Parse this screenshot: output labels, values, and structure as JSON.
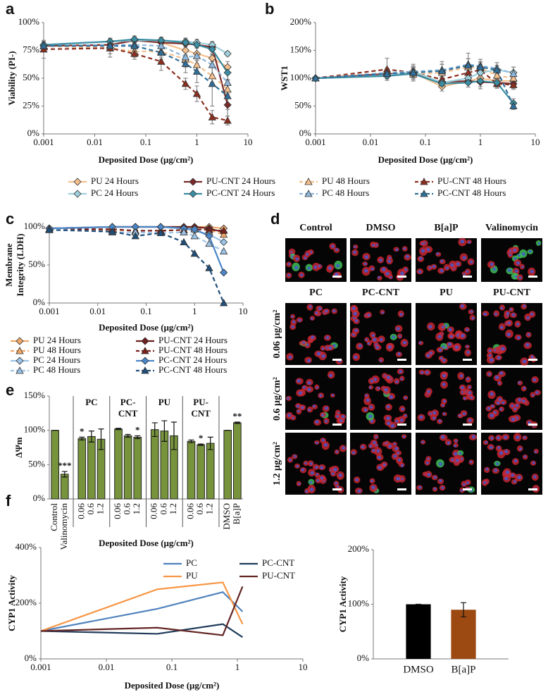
{
  "chart_data": [
    {
      "type": "line",
      "panel": "a",
      "xlabel": "Deposited Dose (μg/cm²)",
      "ylabel": "Viability (PI-)",
      "xscale": "log",
      "legend": "below",
      "x": [
        0.001,
        0.02,
        0.06,
        0.2,
        0.6,
        1,
        2,
        4
      ],
      "xlim": [
        0.001,
        10
      ],
      "xticks": [
        0.001,
        0.01,
        0.1,
        1,
        10
      ],
      "ylim": [
        0,
        100
      ],
      "yticks": [
        {
          "value": 0,
          "label": "0%"
        },
        {
          "value": 25,
          "label": "25%"
        },
        {
          "value": 50,
          "label": "50%"
        },
        {
          "value": 75,
          "label": "75%"
        },
        {
          "value": 100,
          "label": "100%"
        }
      ],
      "series": [
        {
          "name": "PU 24 Hours",
          "color": "#f5c08e",
          "marker": "diamond",
          "dash": false,
          "values": [
            79,
            80,
            84,
            82,
            75,
            72,
            68,
            60
          ],
          "errors": [
            3,
            4,
            4,
            4,
            5,
            6,
            6,
            5
          ]
        },
        {
          "name": "PU-CNT 24 Hours",
          "color": "#7a2a2a",
          "marker": "diamond",
          "dash": false,
          "values": [
            79,
            80,
            84,
            82,
            81,
            80,
            78,
            26
          ],
          "errors": [
            3,
            4,
            3,
            3,
            3,
            3,
            4,
            10
          ]
        },
        {
          "name": "PU 48 Hours",
          "color": "#f5c08e",
          "marker": "triangle",
          "dash": true,
          "values": [
            79,
            77,
            74,
            74,
            67,
            62,
            52,
            40
          ],
          "errors": [
            4,
            5,
            5,
            5,
            7,
            8,
            8,
            8
          ]
        },
        {
          "name": "PU-CNT 48 Hours",
          "color": "#8b2f1f",
          "marker": "triangle",
          "dash": true,
          "values": [
            76,
            77,
            72,
            65,
            45,
            36,
            15,
            12
          ],
          "errors": [
            8,
            8,
            5,
            8,
            5,
            7,
            6,
            4
          ]
        },
        {
          "name": "PC 24 Hours",
          "color": "#9fd0dc",
          "marker": "diamond",
          "dash": false,
          "values": [
            80,
            83,
            84,
            84,
            83,
            82,
            80,
            72
          ],
          "errors": [
            3,
            3,
            3,
            3,
            3,
            3,
            3,
            2
          ]
        },
        {
          "name": "PC-CNT 24 Hours",
          "color": "#3a8ea3",
          "marker": "diamond",
          "dash": false,
          "values": [
            80,
            83,
            85,
            84,
            82,
            80,
            76,
            55
          ],
          "errors": [
            3,
            3,
            3,
            3,
            3,
            3,
            4,
            6
          ]
        },
        {
          "name": "PC 48 Hours",
          "color": "#8fb8dd",
          "marker": "triangle",
          "dash": true,
          "values": [
            79,
            80,
            80,
            79,
            69,
            70,
            62,
            46
          ],
          "errors": [
            3,
            4,
            4,
            5,
            6,
            7,
            9,
            10
          ]
        },
        {
          "name": "PC-CNT 48 Hours",
          "color": "#2f6f9a",
          "marker": "triangle",
          "dash": true,
          "values": [
            79,
            79,
            79,
            73,
            63,
            56,
            45,
            34
          ],
          "errors": [
            3,
            4,
            4,
            6,
            8,
            10,
            20,
            12
          ]
        }
      ]
    },
    {
      "type": "line",
      "panel": "b",
      "xlabel": "Deposited Dose (μg/cm²)",
      "ylabel": "WST1",
      "xscale": "log",
      "x": [
        0.001,
        0.02,
        0.06,
        0.2,
        0.6,
        1,
        2,
        4
      ],
      "xlim": [
        0.001,
        10
      ],
      "xticks": [
        0.001,
        0.01,
        0.1,
        1,
        10
      ],
      "ylim": [
        0,
        200
      ],
      "yticks": [
        {
          "value": 0,
          "label": "0%"
        },
        {
          "value": 50,
          "label": "50%"
        },
        {
          "value": 100,
          "label": "100%"
        },
        {
          "value": 150,
          "label": "150%"
        },
        {
          "value": 200,
          "label": "200%"
        }
      ],
      "series": [
        {
          "color": "#f5c08e",
          "marker": "diamond",
          "dash": false,
          "values": [
            100,
            105,
            110,
            85,
            95,
            100,
            95,
            95
          ],
          "errors": [
            3,
            5,
            8,
            8,
            5,
            6,
            5,
            5
          ]
        },
        {
          "color": "#7a2a2a",
          "marker": "diamond",
          "dash": false,
          "values": [
            100,
            108,
            108,
            93,
            95,
            93,
            92,
            90
          ],
          "errors": [
            3,
            6,
            10,
            10,
            6,
            12,
            8,
            8
          ]
        },
        {
          "color": "#f5c08e",
          "marker": "triangle",
          "dash": true,
          "values": [
            100,
            110,
            107,
            110,
            120,
            118,
            105,
            100
          ],
          "errors": [
            3,
            8,
            12,
            15,
            15,
            10,
            8,
            10
          ]
        },
        {
          "color": "#8b2f1f",
          "marker": "triangle",
          "dash": true,
          "values": [
            100,
            116,
            110,
            98,
            110,
            115,
            90,
            88
          ],
          "errors": [
            3,
            20,
            15,
            12,
            12,
            10,
            8,
            8
          ]
        },
        {
          "color": "#9fd0dc",
          "marker": "diamond",
          "dash": false,
          "values": [
            100,
            105,
            112,
            92,
            100,
            110,
            115,
            110
          ],
          "errors": [
            3,
            5,
            8,
            8,
            8,
            8,
            8,
            10
          ]
        },
        {
          "color": "#3a8ea3",
          "marker": "diamond",
          "dash": false,
          "values": [
            100,
            104,
            108,
            90,
            92,
            95,
            92,
            55
          ],
          "errors": [
            3,
            5,
            8,
            8,
            8,
            10,
            8,
            8
          ]
        },
        {
          "color": "#8fb8dd",
          "marker": "triangle",
          "dash": true,
          "values": [
            100,
            110,
            112,
            115,
            125,
            122,
            118,
            108
          ],
          "errors": [
            3,
            8,
            10,
            15,
            20,
            12,
            10,
            12
          ]
        },
        {
          "color": "#2f6f9a",
          "marker": "triangle",
          "dash": true,
          "values": [
            100,
            108,
            110,
            113,
            123,
            120,
            115,
            50
          ],
          "errors": [
            3,
            8,
            10,
            12,
            12,
            10,
            8,
            6
          ]
        }
      ]
    },
    {
      "type": "line",
      "panel": "c",
      "xlabel": "Deposited Dose (μg/cm²)",
      "ylabel": [
        "Membrane",
        "Integrity (LDH)"
      ],
      "xscale": "log",
      "legend": "below",
      "x": [
        0.001,
        0.02,
        0.06,
        0.2,
        0.6,
        1,
        2,
        4
      ],
      "xlim": [
        0.001,
        10
      ],
      "xticks": [
        0.001,
        0.01,
        0.1,
        1,
        10
      ],
      "ylim": [
        0,
        100
      ],
      "yticks": [
        {
          "value": 0,
          "label": "0%"
        },
        {
          "value": 50,
          "label": "50%"
        },
        {
          "value": 100,
          "label": "100%"
        }
      ],
      "series": [
        {
          "name": "PU 24 Hours",
          "color": "#f0a868",
          "marker": "diamond",
          "dash": false,
          "values": [
            98,
            100,
            100,
            100,
            100,
            100,
            100,
            98
          ]
        },
        {
          "name": "PU-CNT 24 Hours",
          "color": "#6e1f1f",
          "marker": "diamond",
          "dash": false,
          "values": [
            98,
            100,
            100,
            100,
            100,
            100,
            98,
            93
          ]
        },
        {
          "name": "PU 48 Hours",
          "color": "#f0a868",
          "marker": "triangle",
          "dash": true,
          "values": [
            97,
            96,
            95,
            95,
            96,
            97,
            96,
            90
          ]
        },
        {
          "name": "PU-CNT 48 Hours",
          "color": "#7a1f1a",
          "marker": "triangle",
          "dash": true,
          "values": [
            97,
            97,
            95,
            95,
            96,
            97,
            96,
            95
          ]
        },
        {
          "name": "PC 24 Hours",
          "color": "#9cc3e6",
          "marker": "diamond",
          "dash": false,
          "values": [
            98,
            100,
            100,
            100,
            98,
            95,
            90,
            80
          ]
        },
        {
          "name": "PC-CNT 24 Hours",
          "color": "#4a86c8",
          "marker": "diamond",
          "dash": false,
          "values": [
            98,
            100,
            100,
            100,
            98,
            97,
            88,
            40
          ]
        },
        {
          "name": "PC 48 Hours",
          "color": "#9cc3e6",
          "marker": "triangle",
          "dash": true,
          "values": [
            97,
            93,
            93,
            92,
            93,
            88,
            78,
            68
          ]
        },
        {
          "name": "PC-CNT 48 Hours",
          "color": "#1f4e79",
          "marker": "triangle",
          "dash": true,
          "values": [
            96,
            94,
            88,
            92,
            80,
            65,
            46,
            0
          ]
        }
      ]
    },
    {
      "type": "bar",
      "panel": "e",
      "xlabel": "Deposited Dose (μg/cm²)",
      "ylabel": "ΔΨm",
      "color": "#77933c",
      "categories": [
        "Control",
        "Valinomycin",
        "0.06",
        "0.6",
        "1.2",
        "0.06",
        "0.6",
        "1.2",
        "0.06",
        "0.6",
        "1.2",
        "0.06",
        "0.6",
        "1.2",
        "DMSO",
        "B[a]P"
      ],
      "values": [
        100,
        36,
        88,
        91,
        87,
        102,
        92,
        90,
        101,
        99,
        92,
        84,
        79,
        81,
        100,
        111
      ],
      "errors": [
        0,
        4,
        2,
        8,
        15,
        1,
        2,
        2,
        10,
        15,
        20,
        2,
        1,
        9,
        0,
        1
      ],
      "groups": [
        {
          "lines": [
            "PC"
          ],
          "from": 2,
          "to": 4
        },
        {
          "lines": [
            "PC-",
            "CNT"
          ],
          "from": 5,
          "to": 7
        },
        {
          "lines": [
            "PU"
          ],
          "from": 8,
          "to": 10
        },
        {
          "lines": [
            "PU-",
            "CNT"
          ],
          "from": 11,
          "to": 13
        }
      ],
      "annotations": [
        {
          "index": 1,
          "text": "***"
        },
        {
          "index": 2,
          "text": "*"
        },
        {
          "index": 7,
          "text": "*"
        },
        {
          "index": 12,
          "text": "*"
        },
        {
          "index": 15,
          "text": "**"
        }
      ],
      "ylim": [
        0,
        150
      ],
      "yticks": [
        {
          "value": 0,
          "label": "0%"
        },
        {
          "value": 50,
          "label": "50%"
        },
        {
          "value": 100,
          "label": "100%"
        },
        {
          "value": 150,
          "label": "150%"
        }
      ]
    },
    {
      "type": "line",
      "panel": "f",
      "xlabel": "Deposited Dose (μg/cm²)",
      "ylabel": "CYP1 Activity",
      "xscale": "log",
      "legend": "upper center",
      "x": [
        0.001,
        0.06,
        0.6,
        1.2
      ],
      "xlim": [
        0.001,
        10
      ],
      "xticks": [
        0.001,
        0.01,
        0.1,
        1,
        10
      ],
      "ylim": [
        0,
        400
      ],
      "yticks": [
        {
          "value": 0,
          "label": "0%"
        },
        {
          "value": 200,
          "label": "200%"
        },
        {
          "value": 400,
          "label": "400%"
        }
      ],
      "series": [
        {
          "name": "PC",
          "color": "#4f81bd",
          "values": [
            100,
            180,
            240,
            170
          ]
        },
        {
          "name": "PC-CNT",
          "color": "#1f3b5a",
          "values": [
            100,
            90,
            125,
            78
          ]
        },
        {
          "name": "PU",
          "color": "#f79646",
          "values": [
            100,
            250,
            275,
            125
          ]
        },
        {
          "name": "PU-CNT",
          "color": "#632523",
          "values": [
            100,
            112,
            85,
            260
          ]
        }
      ]
    },
    {
      "type": "bar",
      "ylabel": "CYP1 Activity",
      "categories": [
        "DMSO",
        "B[a]P"
      ],
      "values": [
        100,
        90
      ],
      "errors": [
        0,
        13
      ],
      "colors": [
        "#000000",
        "#9c4a12"
      ],
      "ylim": [
        0,
        200
      ],
      "yticks": [
        {
          "value": 0,
          "label": "0%"
        },
        {
          "value": 100,
          "label": "100%"
        },
        {
          "value": 200,
          "label": "200%"
        }
      ]
    }
  ],
  "micrographs": {
    "panel": "d",
    "top_columns": [
      "Control",
      "DMSO",
      "B[a]P",
      "Valinomycin"
    ],
    "columns": [
      "PC",
      "PC-CNT",
      "PU",
      "PU-CNT"
    ],
    "rows": [
      "0.06 μg/cm²",
      "0.6 μg/cm²",
      "1.2 μg/cm²"
    ]
  }
}
